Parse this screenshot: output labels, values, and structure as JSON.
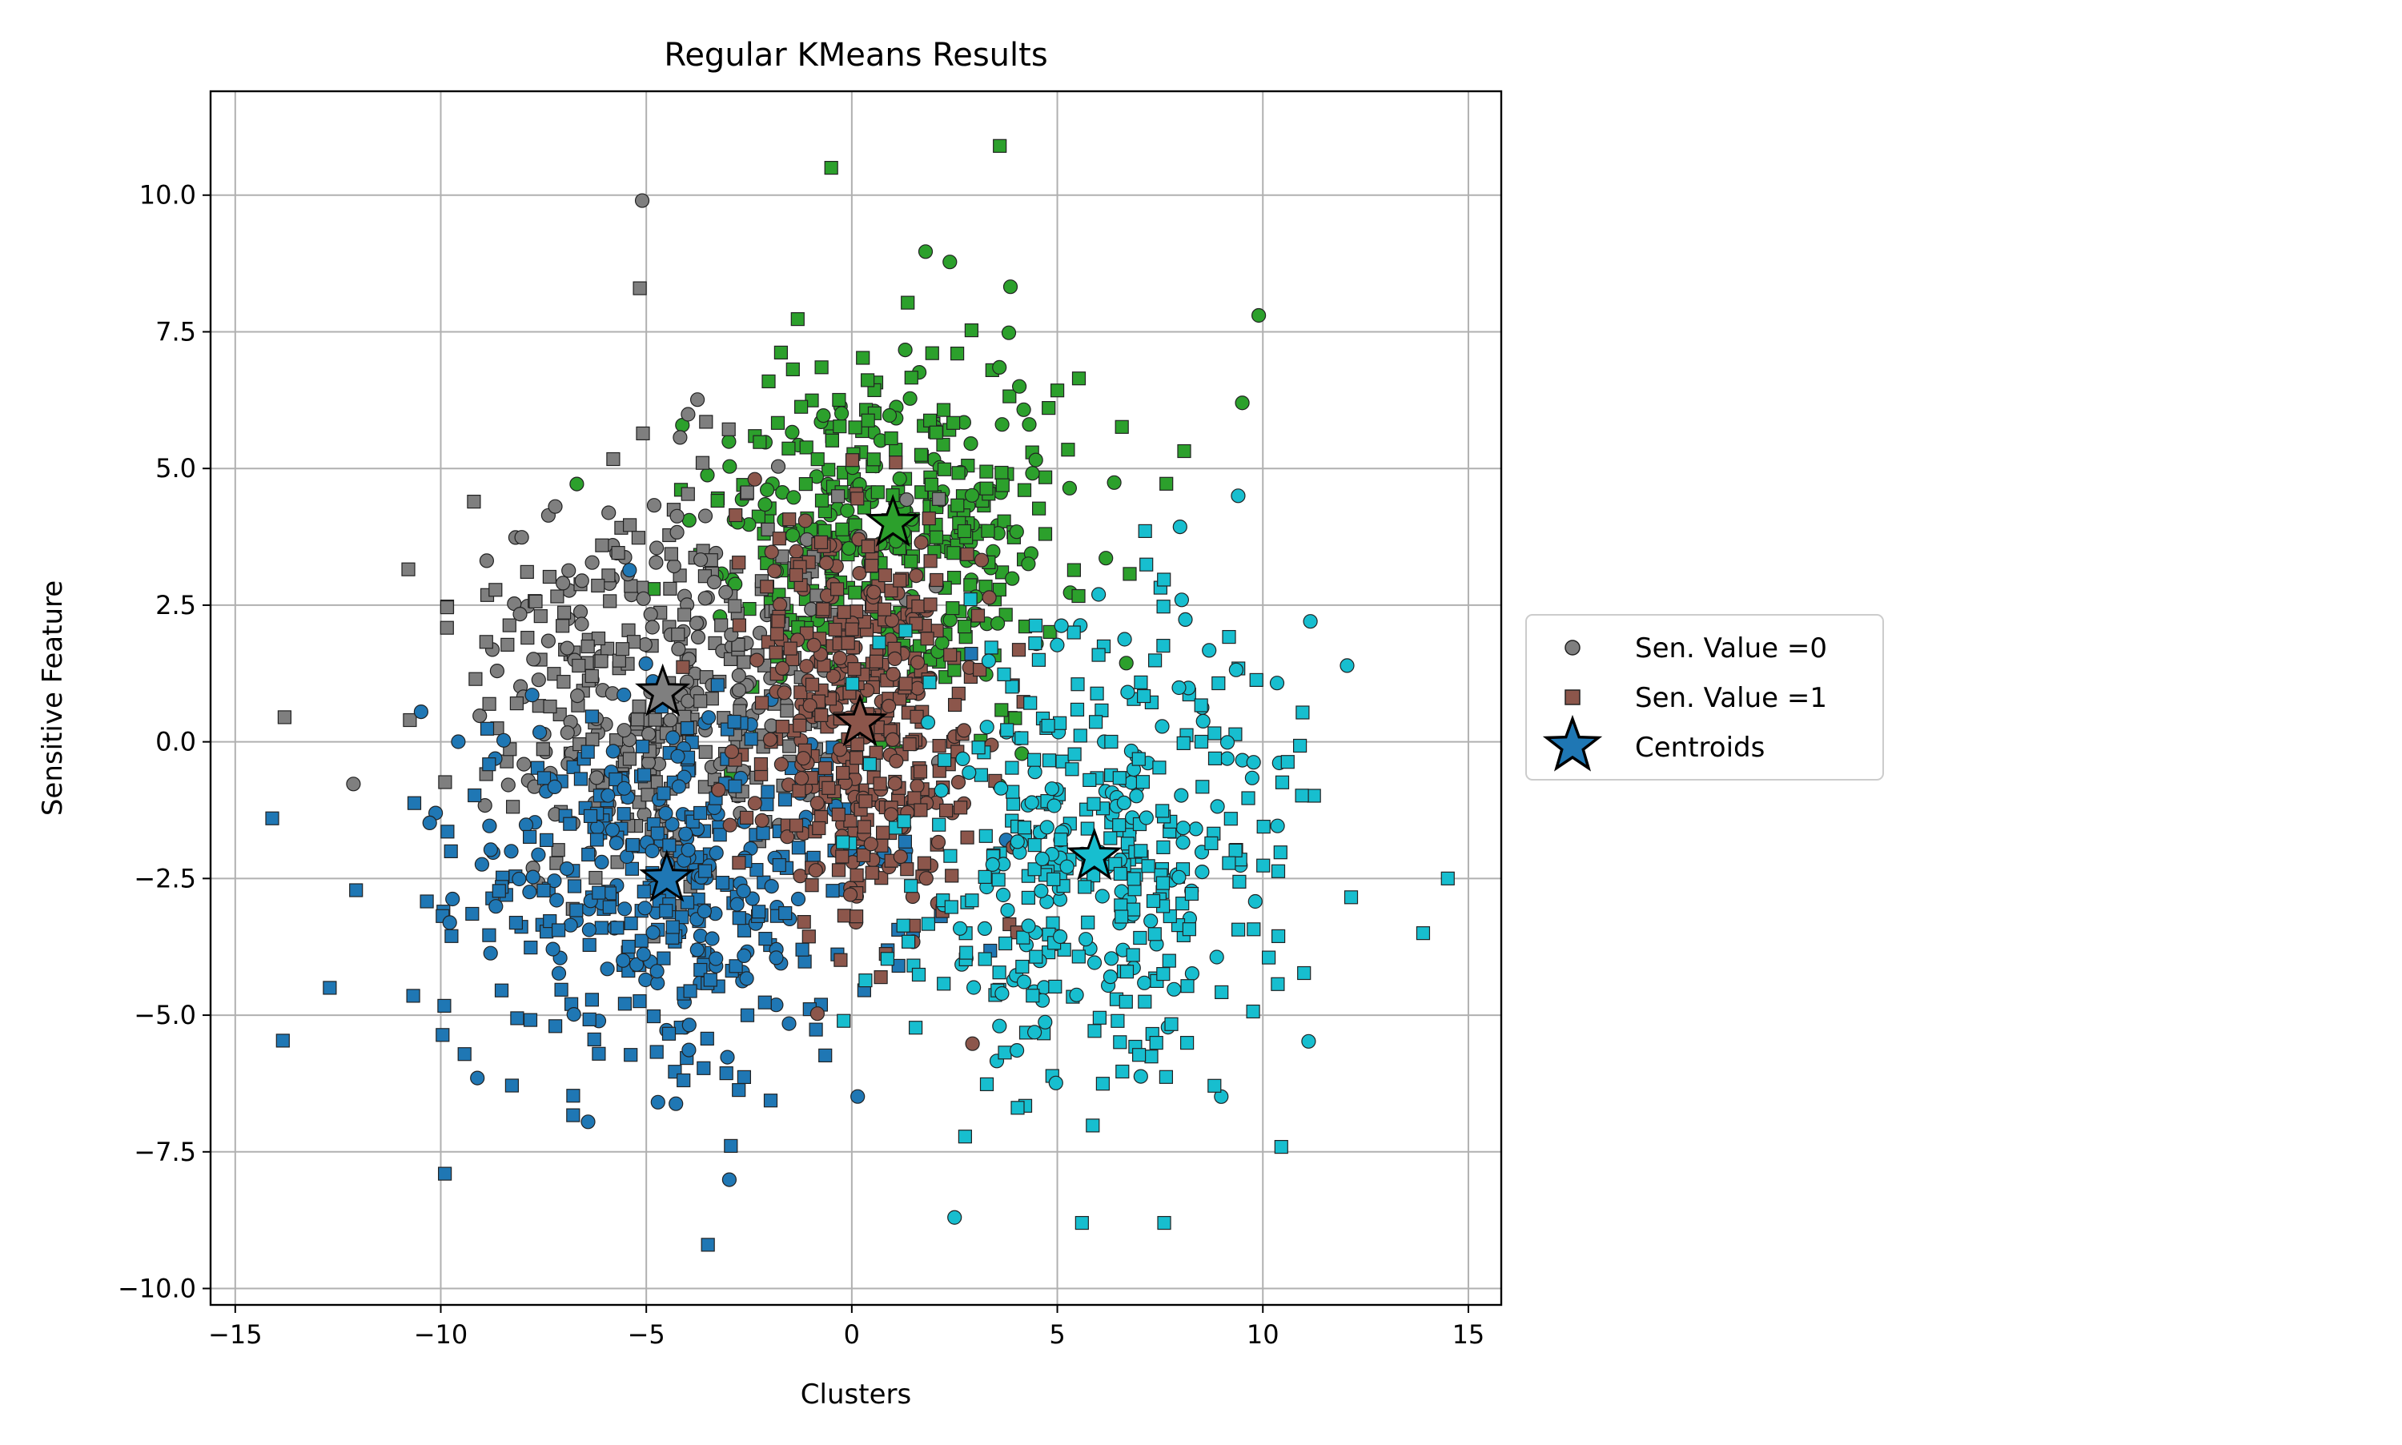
{
  "chart_data": {
    "type": "scatter",
    "title": "Regular KMeans Results",
    "xlabel": "Clusters",
    "ylabel": "Sensitive Feature",
    "xlim": [
      -15.6,
      15.8
    ],
    "ylim": [
      -10.3,
      11.9
    ],
    "xticks": [
      -15,
      -10,
      -5,
      0,
      5,
      10,
      15
    ],
    "xtick_labels": [
      "−15",
      "−10",
      "−5",
      "0",
      "5",
      "10",
      "15"
    ],
    "yticks": [
      -10.0,
      -7.5,
      -5.0,
      -2.5,
      0.0,
      2.5,
      5.0,
      7.5,
      10.0
    ],
    "ytick_labels": [
      "−10.0",
      "−7.5",
      "−5.0",
      "−2.5",
      "0.0",
      "2.5",
      "5.0",
      "7.5",
      "10.0"
    ],
    "grid": true,
    "legend_placement": "outside-right",
    "legend": [
      {
        "label": "Sen. Value =0",
        "marker": "circle",
        "color": "#7f7f7f"
      },
      {
        "label": "Sen. Value =1",
        "marker": "square",
        "color": "#8c564b"
      },
      {
        "label": "Centroids",
        "marker": "star",
        "color": "#1f77b4"
      }
    ],
    "clusters": [
      {
        "color": "#7f7f7f",
        "center": [
          -4.6,
          0.9
        ],
        "spread": [
          2.3,
          1.9
        ]
      },
      {
        "color": "#1f77b4",
        "center": [
          -4.5,
          -2.5
        ],
        "spread": [
          2.7,
          1.8
        ]
      },
      {
        "color": "#8c564b",
        "center": [
          0.2,
          0.4
        ],
        "spread": [
          1.4,
          2.0
        ]
      },
      {
        "color": "#2ca02c",
        "center": [
          1.0,
          4.0
        ],
        "spread": [
          2.2,
          1.7
        ]
      },
      {
        "color": "#17becf",
        "center": [
          5.9,
          -2.1
        ],
        "spread": [
          2.4,
          2.1
        ]
      }
    ],
    "centroids": [
      {
        "x": -4.6,
        "y": 0.9,
        "color": "#7f7f7f"
      },
      {
        "x": -4.5,
        "y": -2.5,
        "color": "#1f77b4"
      },
      {
        "x": 0.2,
        "y": 0.35,
        "color": "#8c564b"
      },
      {
        "x": 1.0,
        "y": 4.0,
        "color": "#2ca02c"
      },
      {
        "x": 5.9,
        "y": -2.1,
        "color": "#17becf"
      }
    ],
    "outlier_points": [
      {
        "x": -5.1,
        "y": 9.9,
        "marker": "circle",
        "color": "#7f7f7f"
      },
      {
        "x": -14.1,
        "y": -1.4,
        "marker": "square",
        "color": "#1f77b4"
      },
      {
        "x": -13.8,
        "y": 0.45,
        "marker": "square",
        "color": "#7f7f7f"
      },
      {
        "x": 14.5,
        "y": -2.5,
        "marker": "square",
        "color": "#17becf"
      },
      {
        "x": 13.9,
        "y": -3.5,
        "marker": "square",
        "color": "#17becf"
      },
      {
        "x": -3.5,
        "y": -9.2,
        "marker": "square",
        "color": "#1f77b4"
      },
      {
        "x": 3.6,
        "y": 10.9,
        "marker": "square",
        "color": "#2ca02c"
      },
      {
        "x": -0.5,
        "y": 10.5,
        "marker": "square",
        "color": "#2ca02c"
      },
      {
        "x": 9.9,
        "y": 7.8,
        "marker": "circle",
        "color": "#2ca02c"
      },
      {
        "x": 9.5,
        "y": 6.2,
        "marker": "circle",
        "color": "#2ca02c"
      },
      {
        "x": 9.4,
        "y": 4.5,
        "marker": "circle",
        "color": "#17becf"
      },
      {
        "x": 7.6,
        "y": -8.8,
        "marker": "square",
        "color": "#17becf"
      },
      {
        "x": 2.5,
        "y": -8.7,
        "marker": "circle",
        "color": "#17becf"
      },
      {
        "x": 5.6,
        "y": -8.8,
        "marker": "square",
        "color": "#17becf"
      },
      {
        "x": -9.9,
        "y": -7.9,
        "marker": "square",
        "color": "#1f77b4"
      },
      {
        "x": -12.7,
        "y": -4.5,
        "marker": "square",
        "color": "#1f77b4"
      }
    ]
  }
}
